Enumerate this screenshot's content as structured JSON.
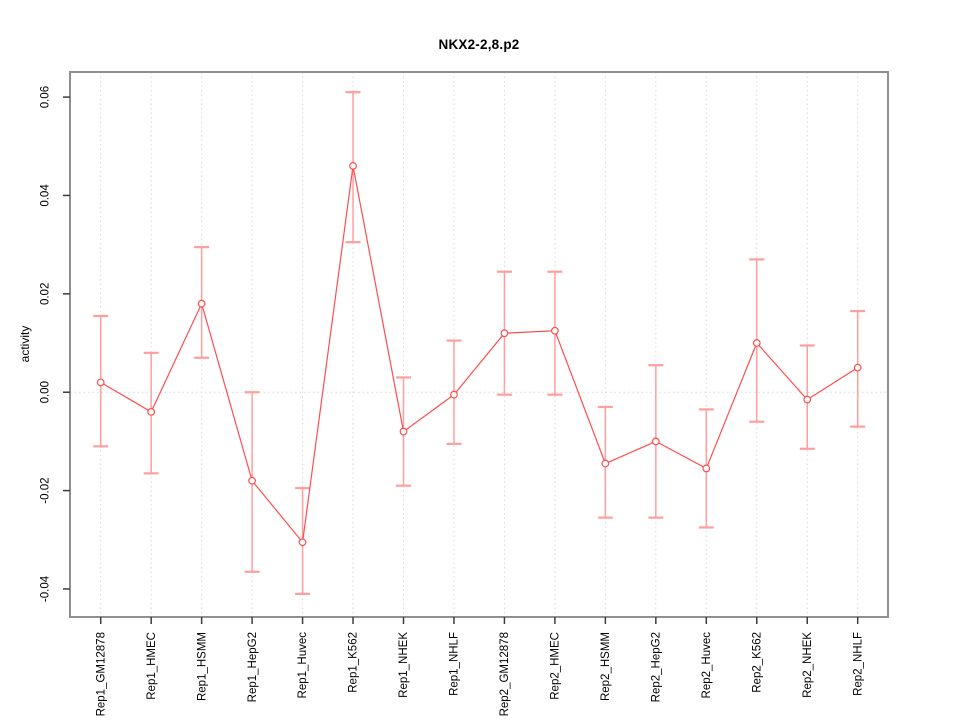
{
  "figure": {
    "background": "#ffffff"
  },
  "chart_data": {
    "type": "line",
    "title": "NKX2-2,8.p2",
    "xlabel": "",
    "ylabel": "activity",
    "categories": [
      "Rep1_GM12878",
      "Rep1_HMEC",
      "Rep1_HSMM",
      "Rep1_HepG2",
      "Rep1_Huvec",
      "Rep1_K562",
      "Rep1_NHEK",
      "Rep1_NHLF",
      "Rep2_GM12878",
      "Rep2_HMEC",
      "Rep2_HSMM",
      "Rep2_HepG2",
      "Rep2_Huvec",
      "Rep2_K562",
      "Rep2_NHEK",
      "Rep2_NHLF"
    ],
    "series": [
      {
        "name": "activity",
        "marker": "open-circle",
        "values": [
          0.002,
          -0.004,
          0.018,
          -0.018,
          -0.0305,
          0.046,
          -0.008,
          -0.0005,
          0.012,
          0.0125,
          -0.0145,
          -0.01,
          -0.0155,
          0.01,
          -0.0015,
          0.005
        ],
        "error_upper": [
          0.0155,
          0.008,
          0.0295,
          0.0,
          -0.0195,
          0.061,
          0.003,
          0.0105,
          0.0245,
          0.0245,
          -0.003,
          0.0055,
          -0.0035,
          0.027,
          0.0095,
          0.0165
        ],
        "error_lower": [
          -0.011,
          -0.0165,
          0.007,
          -0.0365,
          -0.041,
          0.0305,
          -0.019,
          -0.0105,
          -0.0005,
          -0.0005,
          -0.0255,
          -0.0255,
          -0.0275,
          -0.006,
          -0.0115,
          -0.007
        ]
      }
    ],
    "ylim": [
      -0.0457,
      0.0651
    ],
    "yticks": [
      -0.04,
      -0.02,
      0.0,
      0.02,
      0.04,
      0.06
    ],
    "ytick_labels": [
      "-0.04",
      "-0.02",
      "0.00",
      "0.02",
      "0.04",
      "0.06"
    ],
    "grid": "dotted vertical gridline at each category plus dotted horizontal line at zero",
    "xlabel_rotation": 90,
    "ytick_rotation": 90,
    "legend": "none",
    "colors": {
      "point_line": "#ff4d4d",
      "error_bar": "#ff9e9e",
      "gridline": "#d9d9d9",
      "zero_line": "#d9d9d9",
      "box": "#8f8f8f",
      "tick": "#3c3c3c",
      "text": "#000000"
    }
  }
}
